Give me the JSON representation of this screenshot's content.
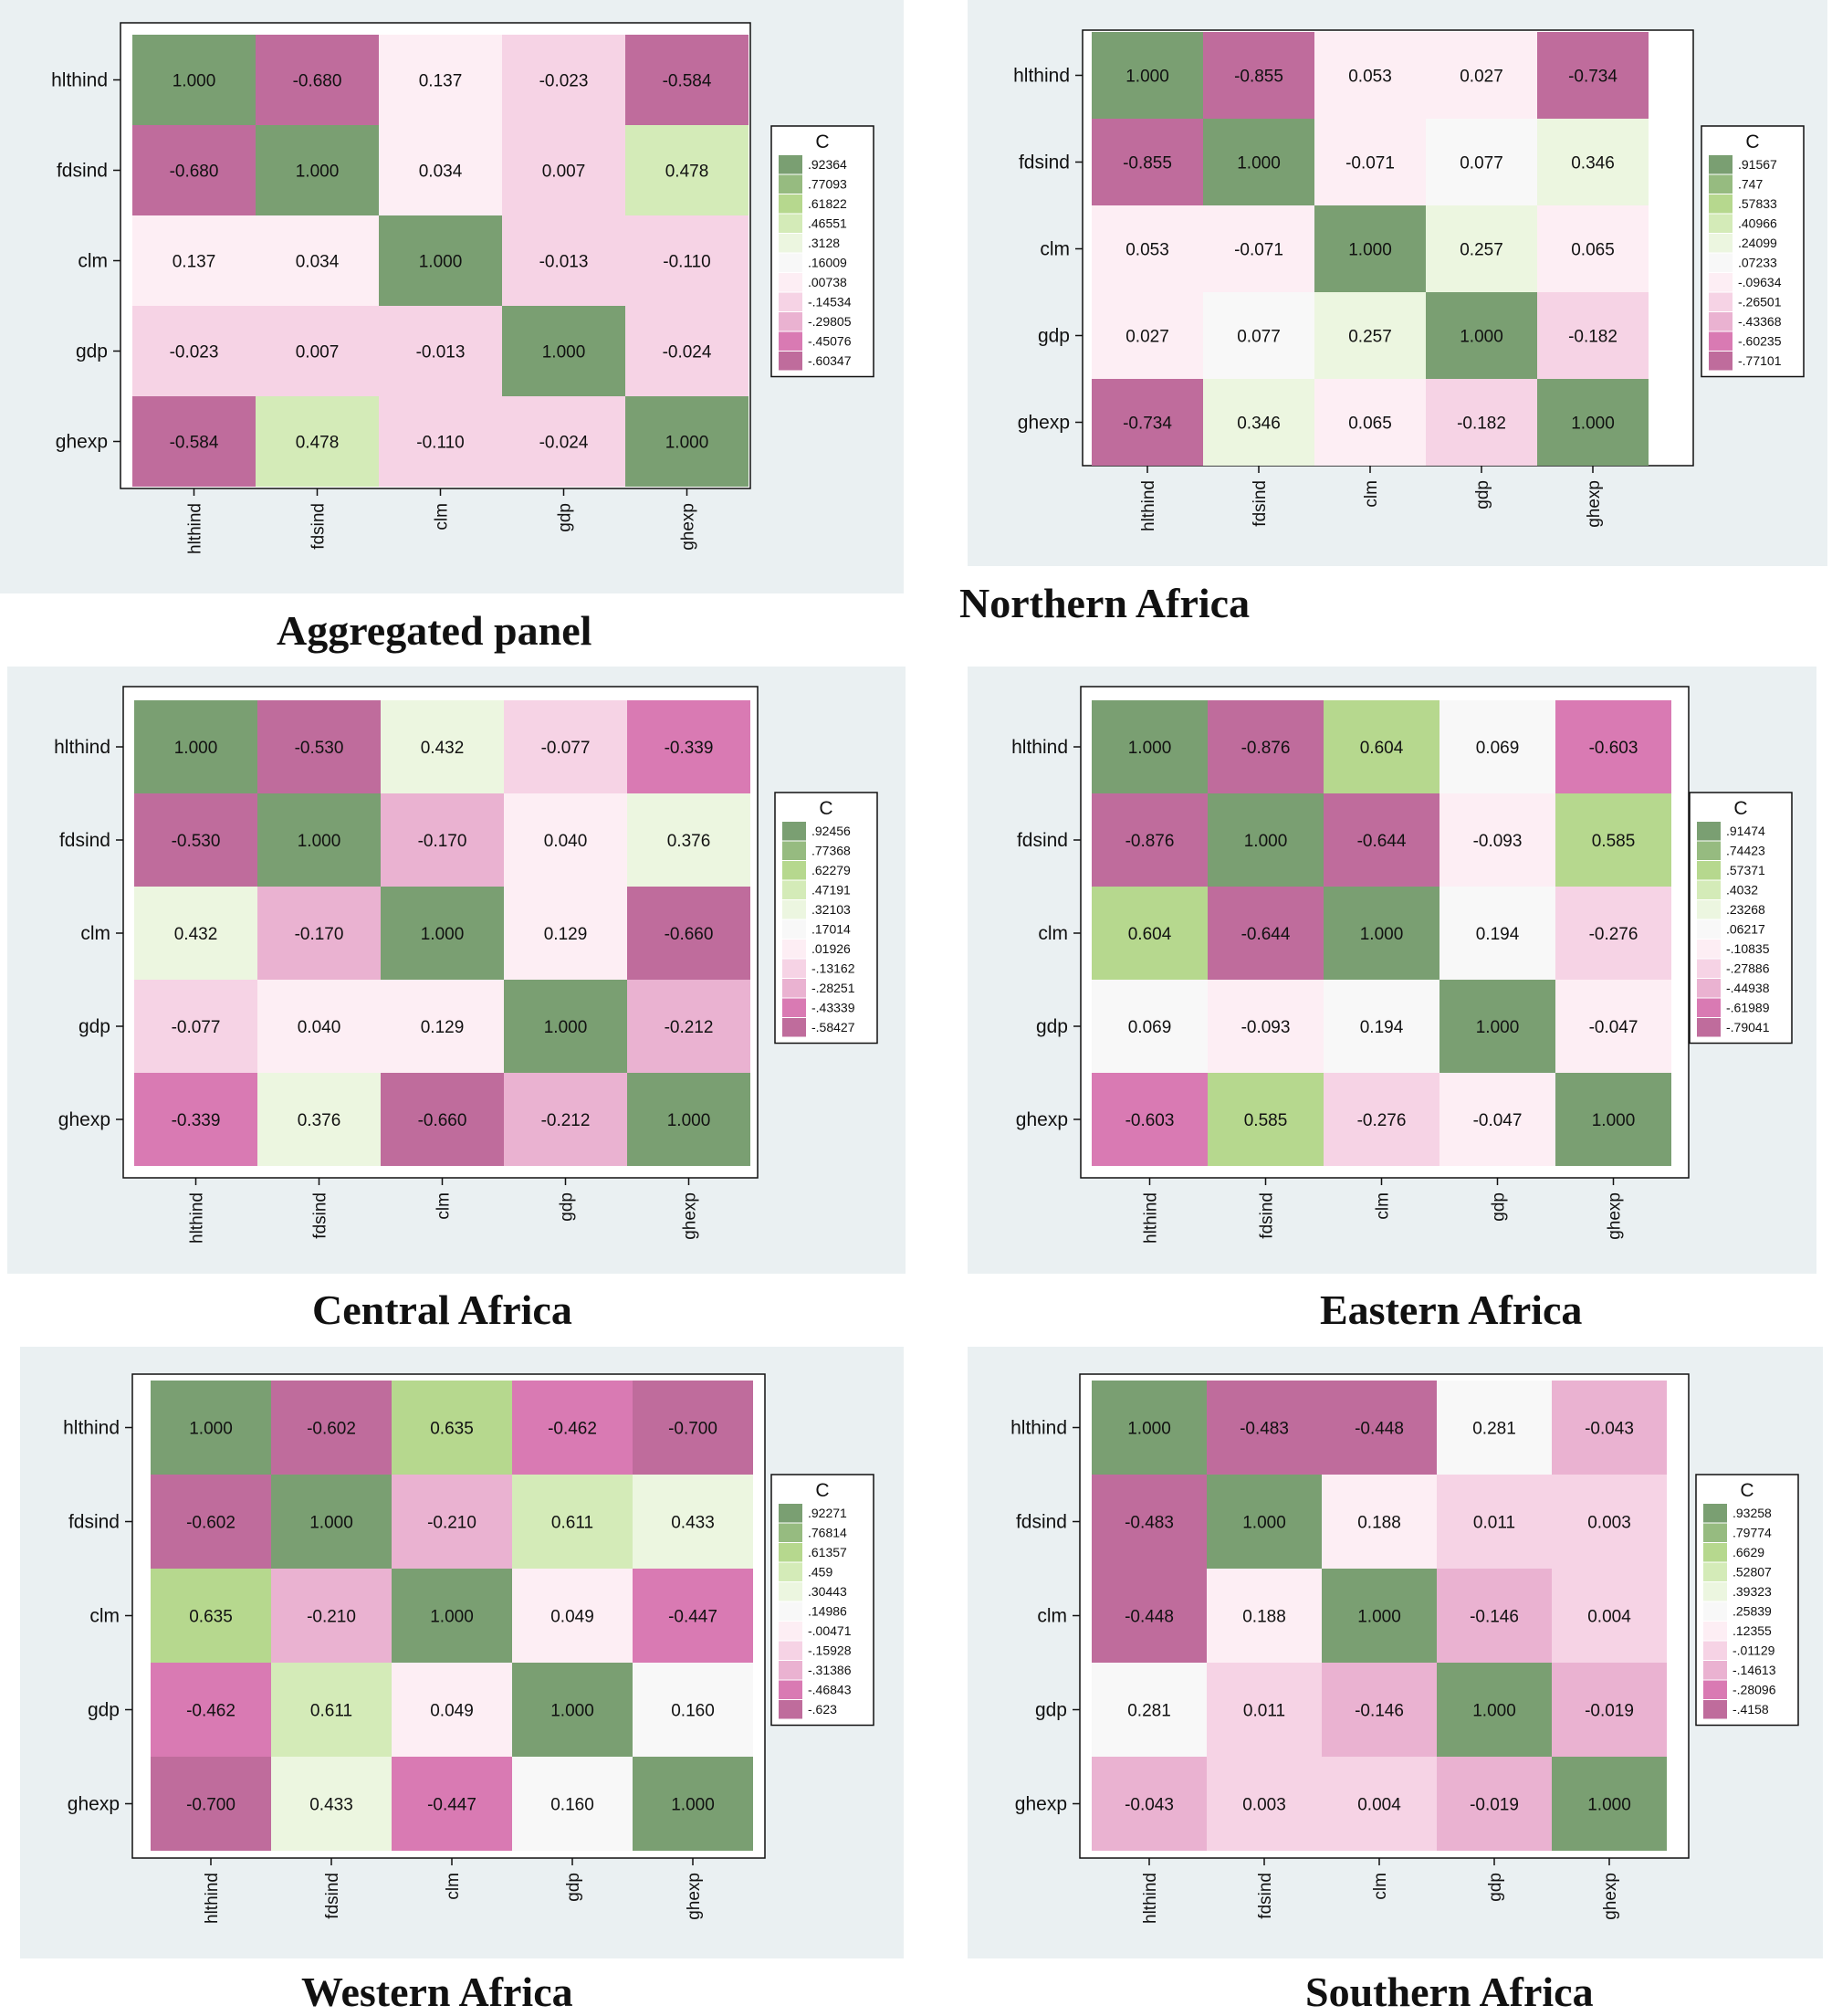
{
  "variables": [
    "hlthind",
    "fdsind",
    "clm",
    "gdp",
    "ghexp"
  ],
  "legend_title": "C",
  "colors": {
    "dark_green": "#7a9f72",
    "mid_green": "#96bb80",
    "light_green": "#b6d88e",
    "pale_green": "#d4ebb8",
    "very_pale_green": "#ecf6e0",
    "neutral": "#f8f8f8",
    "very_pale_pink": "#fdeef4",
    "pale_pink": "#f6d3e5",
    "light_pink": "#eab2d1",
    "mid_pink": "#d97ab3",
    "dark_pink": "#bf6c9c",
    "panel_bg": "#eaf0f2"
  },
  "chart_data": [
    {
      "type": "heatmap",
      "title": "Aggregated panel",
      "legend": [
        ".92364",
        ".77093",
        ".61822",
        ".46551",
        ".3128",
        ".16009",
        ".00738",
        "-.14534",
        "-.29805",
        "-.45076",
        "-.60347"
      ],
      "matrix": [
        [
          "1.000",
          "-0.680",
          "0.137",
          "-0.023",
          "-0.584"
        ],
        [
          "-0.680",
          "1.000",
          "0.034",
          "0.007",
          "0.478"
        ],
        [
          "0.137",
          "0.034",
          "1.000",
          "-0.013",
          "-0.110"
        ],
        [
          "-0.023",
          "0.007",
          "-0.013",
          "1.000",
          "-0.024"
        ],
        [
          "-0.584",
          "0.478",
          "-0.110",
          "-0.024",
          "1.000"
        ]
      ]
    },
    {
      "type": "heatmap",
      "title": "Northern Africa",
      "legend": [
        ".91567",
        ".747",
        ".57833",
        ".40966",
        ".24099",
        ".07233",
        "-.09634",
        "-.26501",
        "-.43368",
        "-.60235",
        "-.77101"
      ],
      "matrix": [
        [
          "1.000",
          "-0.855",
          "0.053",
          "0.027",
          "-0.734"
        ],
        [
          "-0.855",
          "1.000",
          "-0.071",
          "0.077",
          "0.346"
        ],
        [
          "0.053",
          "-0.071",
          "1.000",
          "0.257",
          "0.065"
        ],
        [
          "0.027",
          "0.077",
          "0.257",
          "1.000",
          "-0.182"
        ],
        [
          "-0.734",
          "0.346",
          "0.065",
          "-0.182",
          "1.000"
        ]
      ]
    },
    {
      "type": "heatmap",
      "title": "Central Africa",
      "legend": [
        ".92456",
        ".77368",
        ".62279",
        ".47191",
        ".32103",
        ".17014",
        ".01926",
        "-.13162",
        "-.28251",
        "-.43339",
        "-.58427"
      ],
      "matrix": [
        [
          "1.000",
          "-0.530",
          "0.432",
          "-0.077",
          "-0.339"
        ],
        [
          "-0.530",
          "1.000",
          "-0.170",
          "0.040",
          "0.376"
        ],
        [
          "0.432",
          "-0.170",
          "1.000",
          "0.129",
          "-0.660"
        ],
        [
          "-0.077",
          "0.040",
          "0.129",
          "1.000",
          "-0.212"
        ],
        [
          "-0.339",
          "0.376",
          "-0.660",
          "-0.212",
          "1.000"
        ]
      ]
    },
    {
      "type": "heatmap",
      "title": "Eastern Africa",
      "legend": [
        ".91474",
        ".74423",
        ".57371",
        ".4032",
        ".23268",
        ".06217",
        "-.10835",
        "-.27886",
        "-.44938",
        "-.61989",
        "-.79041"
      ],
      "matrix": [
        [
          "1.000",
          "-0.876",
          "0.604",
          "0.069",
          "-0.603"
        ],
        [
          "-0.876",
          "1.000",
          "-0.644",
          "-0.093",
          "0.585"
        ],
        [
          "0.604",
          "-0.644",
          "1.000",
          "0.194",
          "-0.276"
        ],
        [
          "0.069",
          "-0.093",
          "0.194",
          "1.000",
          "-0.047"
        ],
        [
          "-0.603",
          "0.585",
          "-0.276",
          "-0.047",
          "1.000"
        ]
      ]
    },
    {
      "type": "heatmap",
      "title": "Western Africa",
      "legend": [
        ".92271",
        ".76814",
        ".61357",
        ".459",
        ".30443",
        ".14986",
        "-.00471",
        "-.15928",
        "-.31386",
        "-.46843",
        "-.623"
      ],
      "matrix": [
        [
          "1.000",
          "-0.602",
          "0.635",
          "-0.462",
          "-0.700"
        ],
        [
          "-0.602",
          "1.000",
          "-0.210",
          "0.611",
          "0.433"
        ],
        [
          "0.635",
          "-0.210",
          "1.000",
          "0.049",
          "-0.447"
        ],
        [
          "-0.462",
          "0.611",
          "0.049",
          "1.000",
          "0.160"
        ],
        [
          "-0.700",
          "0.433",
          "-0.447",
          "0.160",
          "1.000"
        ]
      ]
    },
    {
      "type": "heatmap",
      "title": "Southern Africa",
      "legend": [
        ".93258",
        ".79774",
        ".6629",
        ".52807",
        ".39323",
        ".25839",
        ".12355",
        "-.01129",
        "-.14613",
        "-.28096",
        "-.4158"
      ],
      "matrix": [
        [
          "1.000",
          "-0.483",
          "-0.448",
          "0.281",
          "-0.043"
        ],
        [
          "-0.483",
          "1.000",
          "0.188",
          "0.011",
          "0.003"
        ],
        [
          "-0.448",
          "0.188",
          "1.000",
          "-0.146",
          "0.004"
        ],
        [
          "0.281",
          "0.011",
          "-0.146",
          "1.000",
          "-0.019"
        ],
        [
          "-0.043",
          "0.003",
          "0.004",
          "-0.019",
          "1.000"
        ]
      ]
    }
  ]
}
